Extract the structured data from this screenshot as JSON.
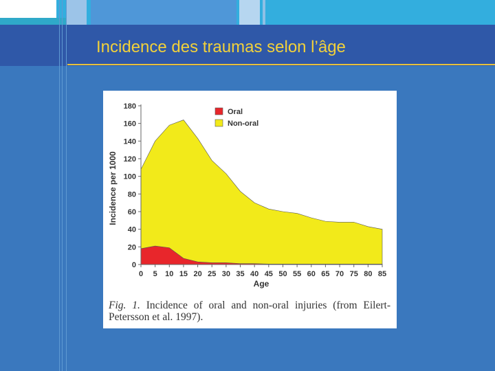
{
  "slide": {
    "title": "Incidence des traumas selon l’âge"
  },
  "figure": {
    "caption_prefix": "Fig. 1.",
    "caption_text": " Incidence of oral and non-oral injuries (from Eilert-Petersson et al. 1997)."
  },
  "colors": {
    "oral": "#e8262b",
    "non_oral": "#f2ea1a",
    "background": "#3a78be",
    "title": "#f2d13a"
  },
  "chart_data": {
    "type": "area",
    "xlabel": "Age",
    "ylabel": "Incidence per 1000",
    "xlim": [
      0,
      85
    ],
    "ylim": [
      0,
      180
    ],
    "xticks": [
      0,
      5,
      10,
      15,
      20,
      25,
      30,
      35,
      40,
      45,
      50,
      55,
      60,
      65,
      70,
      75,
      80,
      85
    ],
    "yticks": [
      0,
      20,
      40,
      60,
      80,
      100,
      120,
      140,
      160,
      180
    ],
    "legend_position": "top-center",
    "stacked": false,
    "series": [
      {
        "name": "Non-oral",
        "color": "#f2ea1a",
        "points": [
          [
            0,
            108
          ],
          [
            5,
            140
          ],
          [
            10,
            158
          ],
          [
            15,
            164
          ],
          [
            20,
            143
          ],
          [
            25,
            118
          ],
          [
            30,
            103
          ],
          [
            35,
            83
          ],
          [
            40,
            70
          ],
          [
            45,
            63
          ],
          [
            50,
            60
          ],
          [
            55,
            58
          ],
          [
            60,
            53
          ],
          [
            65,
            49
          ],
          [
            70,
            48
          ],
          [
            75,
            48
          ],
          [
            80,
            43
          ],
          [
            85,
            40
          ]
        ]
      },
      {
        "name": "Oral",
        "color": "#e8262b",
        "points": [
          [
            0,
            18
          ],
          [
            5,
            21
          ],
          [
            10,
            19
          ],
          [
            15,
            7
          ],
          [
            20,
            3
          ],
          [
            25,
            2
          ],
          [
            30,
            2
          ],
          [
            35,
            1
          ],
          [
            40,
            1
          ],
          [
            45,
            0.5
          ],
          [
            50,
            0.5
          ],
          [
            55,
            0.5
          ],
          [
            60,
            0.5
          ],
          [
            65,
            0.5
          ],
          [
            70,
            0.5
          ],
          [
            75,
            0.5
          ],
          [
            80,
            0.5
          ],
          [
            85,
            0.5
          ]
        ]
      }
    ]
  }
}
